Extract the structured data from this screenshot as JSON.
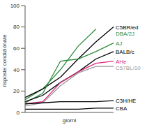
{
  "chart_data": {
    "type": "line",
    "xlabel": "giorni",
    "ylabel": "risposte condizionate",
    "categories": [
      null,
      null,
      null,
      null,
      null,
      null
    ],
    "ylim": [
      0,
      100
    ],
    "yticks": [
      0,
      20,
      40,
      60,
      80,
      100
    ],
    "tick_labels": "y",
    "grid": false,
    "series": [
      {
        "name": "DBA/2J",
        "color": "#2e8b3e",
        "values": [
          12,
          22,
          40,
          62,
          78,
          null
        ]
      },
      {
        "name": "C5BR/ed",
        "color": "#000000",
        "values": [
          14,
          22,
          33,
          50,
          66,
          80
        ]
      },
      {
        "name": "AJ",
        "color": "#2e8b3e",
        "values": [
          9,
          18,
          48,
          50,
          57,
          65
        ]
      },
      {
        "name": "BALB/c",
        "color": "#000000",
        "values": [
          10,
          16,
          28,
          38,
          50,
          57
        ]
      },
      {
        "name": "AHe",
        "color": "#e0267c",
        "values": [
          8,
          10,
          28,
          38,
          46,
          48
        ]
      },
      {
        "name": "C57BL/10",
        "color": "#999999",
        "values": [
          6,
          9,
          25,
          37,
          43,
          43
        ]
      },
      {
        "name": "C3H/HE",
        "color": "#000000",
        "values": [
          8,
          9,
          10,
          10,
          10,
          11
        ]
      },
      {
        "name": "CBA",
        "color": "#000000",
        "values": [
          3,
          3,
          3,
          3,
          4,
          4
        ]
      }
    ]
  }
}
